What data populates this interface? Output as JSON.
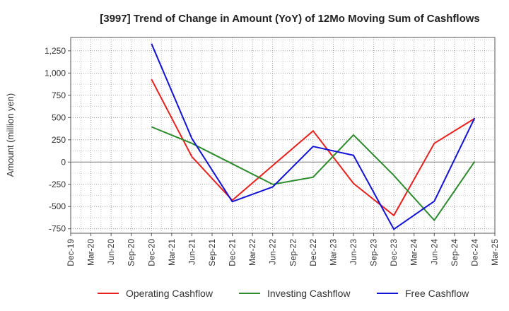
{
  "chart_data": {
    "type": "line",
    "title": "[3997]  Trend of Change in Amount (YoY) of 12Mo Moving Sum of Cashflows",
    "xlabel": "",
    "ylabel": "Amount (million yen)",
    "ylim": [
      -800,
      1400
    ],
    "yticks": [
      1250,
      1000,
      750,
      500,
      250,
      0,
      -250,
      -500,
      -750
    ],
    "ytick_labels": [
      "1,250",
      "1,000",
      "750",
      "500",
      "250",
      "0",
      "-250",
      "-500",
      "-750"
    ],
    "categories": [
      "Dec-19",
      "Mar-20",
      "Jun-20",
      "Sep-20",
      "Dec-20",
      "Mar-21",
      "Jun-21",
      "Sep-21",
      "Dec-21",
      "Mar-22",
      "Jun-22",
      "Sep-22",
      "Dec-22",
      "Mar-23",
      "Jun-23",
      "Sep-23",
      "Dec-23",
      "Mar-24",
      "Jun-24",
      "Sep-24",
      "Dec-24",
      "Mar-25"
    ],
    "series": [
      {
        "name": "Operating Cashflow",
        "color": "#e8211e",
        "values": [
          null,
          null,
          null,
          null,
          930,
          null,
          60,
          null,
          -430,
          null,
          -40,
          null,
          350,
          null,
          -240,
          null,
          -600,
          null,
          210,
          null,
          490,
          null
        ]
      },
      {
        "name": "Investing Cashflow",
        "color": "#2e8b2e",
        "values": [
          null,
          null,
          null,
          null,
          395,
          null,
          210,
          null,
          -20,
          null,
          -250,
          null,
          -170,
          null,
          305,
          null,
          -150,
          null,
          -655,
          null,
          5,
          null
        ]
      },
      {
        "name": "Free Cashflow",
        "color": "#1212d6",
        "values": [
          null,
          null,
          null,
          null,
          1330,
          null,
          265,
          null,
          -445,
          null,
          -280,
          null,
          175,
          null,
          75,
          null,
          -755,
          null,
          -440,
          null,
          495,
          null
        ]
      }
    ],
    "legend_position": "bottom",
    "grid": true
  }
}
